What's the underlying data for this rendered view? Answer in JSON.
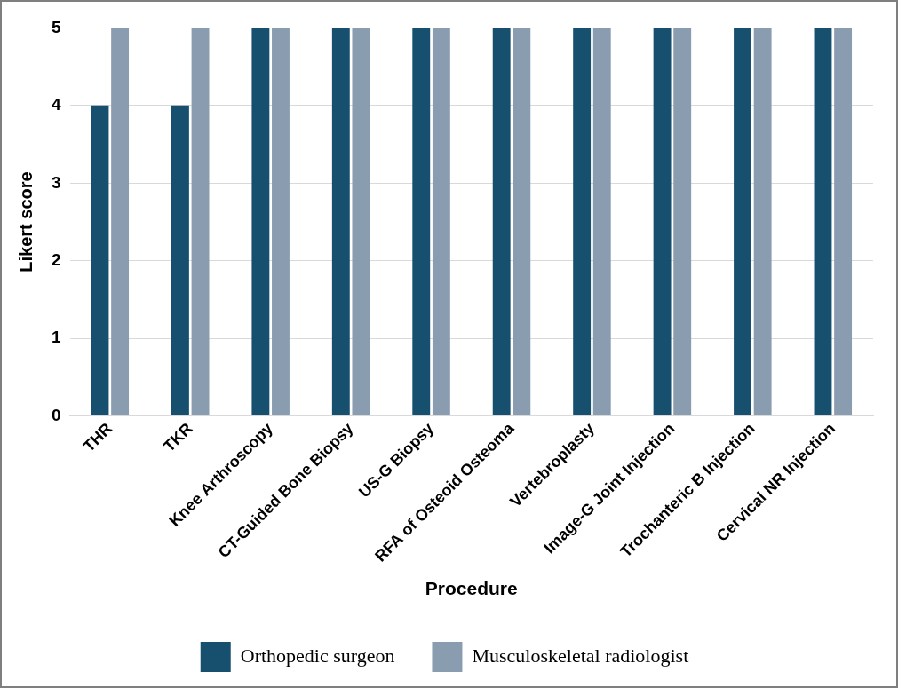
{
  "chart_data": {
    "type": "bar",
    "x_label": "Procedure",
    "y_label": "Likert score",
    "categories": [
      "THR",
      "TKR",
      "Knee Arthroscopy",
      "CT-Guided Bone Biopsy",
      "US-G Biopsy",
      "RFA of Osteoid Osteoma",
      "Vertebroplasty",
      "Image-G Joint Injection",
      "Trochanteric B Injection",
      "Cervical NR Injection"
    ],
    "series": [
      {
        "name": "Orthopedic surgeon",
        "color": "#17506e",
        "values": [
          4,
          4,
          5,
          5,
          5,
          5,
          5,
          5,
          5,
          5
        ]
      },
      {
        "name": "Musculoskeletal radiologist",
        "color": "#8a9db0",
        "values": [
          5,
          5,
          5,
          5,
          5,
          5,
          5,
          5,
          5,
          5
        ]
      }
    ],
    "ylim": [
      0,
      5
    ],
    "yticks": [
      0,
      1,
      2,
      3,
      4,
      5
    ],
    "grid": true,
    "legend": "bottom"
  }
}
